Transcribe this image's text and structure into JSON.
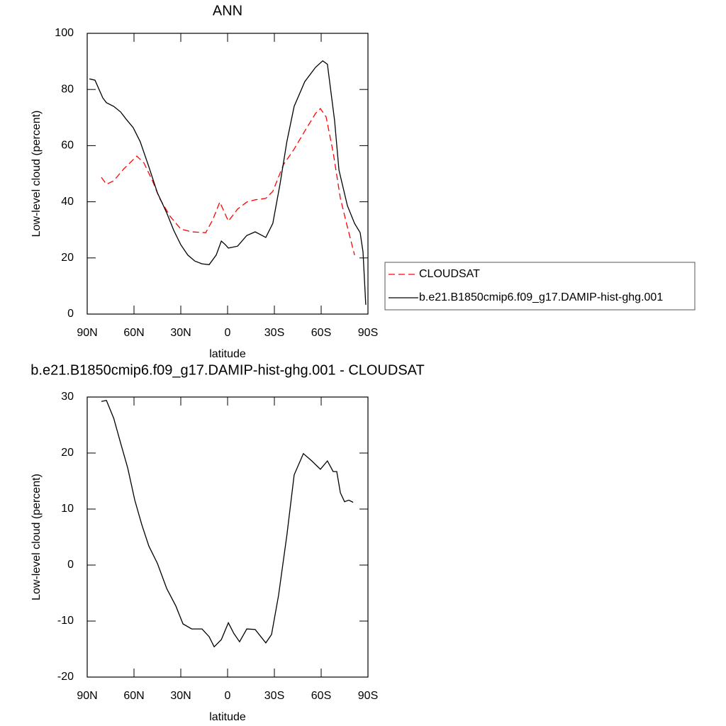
{
  "chart_data": [
    {
      "type": "line",
      "title": "ANN",
      "xlabel": "latitude",
      "ylabel": "Low-level cloud (percent)",
      "xlim": [
        90,
        -90
      ],
      "xticks": [
        {
          "value": 90,
          "label": "90N"
        },
        {
          "value": 60,
          "label": "60N"
        },
        {
          "value": 30,
          "label": "30N"
        },
        0,
        {
          "value": -30,
          "label": "30S"
        },
        {
          "value": -60,
          "label": "60S"
        },
        {
          "value": -90,
          "label": "90S"
        }
      ],
      "ylim": [
        0,
        100
      ],
      "yticks": [
        0,
        20,
        40,
        60,
        80,
        100
      ],
      "legend": "outside-right",
      "series": [
        {
          "name": "CLOUDSAT",
          "color": "#ff0000",
          "dash": true,
          "x": [
            80.9,
            77.7,
            73,
            66.4,
            58.2,
            53.6,
            48.2,
            43.6,
            36.8,
            30,
            23,
            14,
            9.5,
            5,
            -0.5,
            -6.4,
            -12.3,
            -17.7,
            -24.5,
            -29,
            -35.9,
            -42.7,
            -49.5,
            -56.4,
            -59.5,
            -63.2,
            -67.7,
            -72.3,
            -76.8,
            -81.4
          ],
          "values": [
            48.7,
            46.2,
            47.5,
            51.8,
            56.3,
            53.8,
            47.5,
            41.2,
            34.8,
            30.3,
            29.3,
            29,
            33.6,
            39.9,
            33.1,
            37.4,
            39.9,
            40.7,
            41.2,
            43.7,
            53.3,
            58.8,
            65.2,
            71.5,
            73.2,
            70.2,
            57.6,
            41.2,
            31,
            21
          ]
        },
        {
          "name": "b.e21.B1850cmip6.f09_g17.DAMIP-hist-ghg.001",
          "color": "#000000",
          "dash": false,
          "x": [
            88.6,
            85,
            80,
            77.7,
            73,
            68.6,
            65,
            60.5,
            56,
            50.5,
            45,
            39,
            34.5,
            30,
            25.5,
            21,
            16.4,
            11.8,
            7.3,
            4,
            1.4,
            -0.5,
            -6.4,
            -12.3,
            -17.7,
            -24.5,
            -29,
            -33.6,
            -38,
            -42.7,
            -49.5,
            -56.4,
            -61,
            -64,
            -68.6,
            -71.4,
            -76.8,
            -81.4,
            -85,
            -86.8,
            -88.6
          ],
          "values": [
            83.8,
            83.3,
            77,
            75.3,
            74,
            72,
            69.4,
            66.4,
            61.4,
            52.5,
            43.2,
            36,
            29.8,
            24.7,
            21,
            18.9,
            17.9,
            17.6,
            21,
            26,
            24.7,
            23.5,
            24.2,
            28,
            29.3,
            27.3,
            32.3,
            46.2,
            61.4,
            74,
            82.8,
            87.9,
            90.2,
            89,
            69,
            51.3,
            38.6,
            32.3,
            29,
            22.2,
            3.3
          ]
        }
      ]
    },
    {
      "type": "line",
      "title": "b.e21.B1850cmip6.f09_g17.DAMIP-hist-ghg.001 - CLOUDSAT",
      "xlabel": "latitude",
      "ylabel": "Low-level cloud (percent)",
      "xlim": [
        90,
        -90
      ],
      "xticks": [
        {
          "value": 90,
          "label": "90N"
        },
        {
          "value": 60,
          "label": "60N"
        },
        {
          "value": 30,
          "label": "30N"
        },
        0,
        {
          "value": -30,
          "label": "30S"
        },
        {
          "value": -60,
          "label": "60S"
        },
        {
          "value": -90,
          "label": "90S"
        }
      ],
      "ylim": [
        -20,
        30
      ],
      "yticks": [
        -20,
        -10,
        0,
        10,
        20,
        30
      ],
      "series": [
        {
          "color": "#000000",
          "dash": false,
          "x": [
            80.9,
            77.7,
            73,
            68.6,
            64,
            59.5,
            55,
            50.5,
            45,
            39,
            33.2,
            28.6,
            23,
            16.4,
            11.8,
            8.6,
            4,
            -0.5,
            -4,
            -7.7,
            -12.3,
            -17.7,
            -24.5,
            -28.2,
            -32.7,
            -38,
            -42.7,
            -48.6,
            -54,
            -59.5,
            -64,
            -67.7,
            -70,
            -72.3,
            -75,
            -77.7,
            -80.5
          ],
          "values": [
            29.2,
            29.4,
            26.2,
            21.8,
            17.3,
            11.6,
            7.2,
            3.4,
            0.3,
            -4.2,
            -7.3,
            -10.5,
            -11.4,
            -11.4,
            -12.8,
            -14.6,
            -13.3,
            -10.3,
            -12.2,
            -13.7,
            -11.4,
            -11.5,
            -13.9,
            -12.4,
            -5.4,
            5.3,
            16.1,
            19.9,
            18.6,
            17.1,
            18.6,
            16.7,
            16.7,
            12.9,
            11.3,
            11.6,
            11.2
          ]
        }
      ]
    }
  ]
}
